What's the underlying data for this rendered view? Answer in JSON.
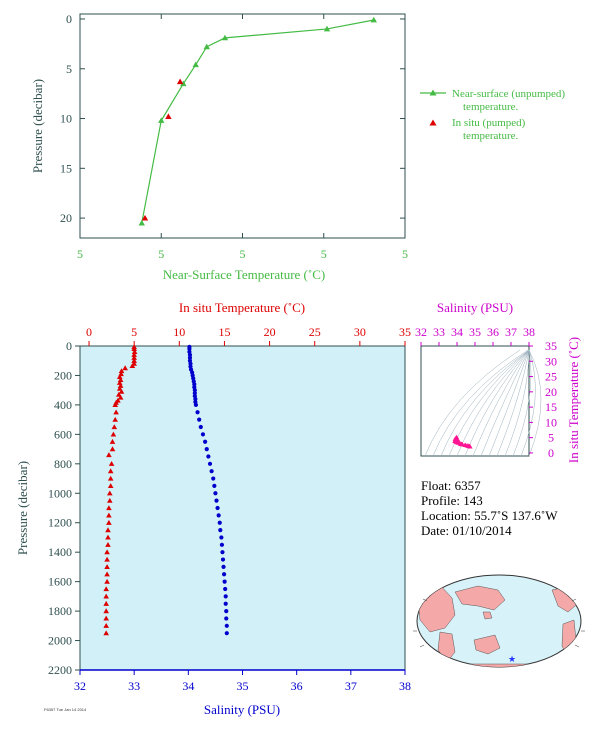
{
  "chart_data": [
    {
      "type": "line",
      "xlabel": "Near-Surface Temperature (˚C)",
      "ylabel": "Pressure (decibar)",
      "xticks": [
        "5",
        "5",
        "5",
        "5",
        "5"
      ],
      "yticks": [
        "0",
        "5",
        "10",
        "15",
        "20"
      ],
      "xlim": [
        1.5,
        6.5
      ],
      "ylim": [
        22,
        -0.5
      ],
      "series": [
        {
          "name": "Near-surface (unpumped) temperature.",
          "color": "#44bb44",
          "marker": "triangle",
          "points": [
            [
              6.02,
              0.1
            ],
            [
              5.3,
              1.0
            ],
            [
              3.73,
              1.9
            ],
            [
              3.45,
              2.8
            ],
            [
              3.28,
              4.6
            ],
            [
              3.09,
              6.5
            ],
            [
              2.75,
              10.2
            ],
            [
              2.45,
              20.5
            ]
          ]
        },
        {
          "name": "In situ (pumped) temperature.",
          "color": "#dd0000",
          "marker": "triangle",
          "points": [
            [
              3.04,
              6.3
            ],
            [
              2.86,
              9.8
            ],
            [
              2.5,
              20.0
            ]
          ]
        }
      ]
    },
    {
      "type": "scatter",
      "top_xlabel": "In situ Temperature (˚C)",
      "bottom_xlabel": "Salinity (PSU)",
      "ylabel": "Pressure (decibar)",
      "top_xticks": [
        "0",
        "5",
        "10",
        "15",
        "20",
        "25",
        "30",
        "35"
      ],
      "bottom_xticks": [
        "32",
        "33",
        "34",
        "35",
        "36",
        "37",
        "38"
      ],
      "yticks": [
        "0",
        "200",
        "400",
        "600",
        "800",
        "1000",
        "1200",
        "1400",
        "1600",
        "1800",
        "2000",
        "2200"
      ],
      "temperature_range": [
        -1,
        35
      ],
      "salinity_range": [
        32,
        38
      ],
      "pressure_range": [
        0,
        2200
      ],
      "series": [
        {
          "name": "temperature",
          "color": "#dd0000",
          "marker": "triangle",
          "points": [
            [
              5.0,
              6
            ],
            [
              5.0,
              20
            ],
            [
              5.05,
              40
            ],
            [
              5.0,
              60
            ],
            [
              5.0,
              80
            ],
            [
              5.0,
              100
            ],
            [
              5.0,
              120
            ],
            [
              4.8,
              135
            ],
            [
              4.0,
              150
            ],
            [
              3.6,
              170
            ],
            [
              3.55,
              190
            ],
            [
              3.4,
              210
            ],
            [
              3.5,
              230
            ],
            [
              3.4,
              250
            ],
            [
              3.5,
              270
            ],
            [
              3.4,
              290
            ],
            [
              3.6,
              310
            ],
            [
              3.3,
              330
            ],
            [
              3.5,
              350
            ],
            [
              3.2,
              370
            ],
            [
              3.0,
              385
            ],
            [
              2.9,
              400
            ],
            [
              3.0,
              450
            ],
            [
              2.9,
              500
            ],
            [
              2.8,
              550
            ],
            [
              2.7,
              600
            ],
            [
              2.6,
              650
            ],
            [
              2.6,
              700
            ],
            [
              2.2,
              740
            ],
            [
              2.5,
              800
            ],
            [
              2.4,
              850
            ],
            [
              2.4,
              900
            ],
            [
              2.4,
              950
            ],
            [
              2.3,
              1000
            ],
            [
              2.3,
              1050
            ],
            [
              2.2,
              1100
            ],
            [
              2.2,
              1150
            ],
            [
              2.2,
              1200
            ],
            [
              2.1,
              1250
            ],
            [
              2.1,
              1300
            ],
            [
              2.1,
              1350
            ],
            [
              2.0,
              1400
            ],
            [
              2.0,
              1450
            ],
            [
              2.0,
              1500
            ],
            [
              2.0,
              1550
            ],
            [
              2.0,
              1600
            ],
            [
              1.9,
              1650
            ],
            [
              1.9,
              1700
            ],
            [
              1.9,
              1750
            ],
            [
              1.9,
              1800
            ],
            [
              1.9,
              1850
            ],
            [
              1.9,
              1900
            ],
            [
              1.9,
              1950
            ]
          ]
        },
        {
          "name": "salinity",
          "color": "#0000cc",
          "marker": "dot",
          "points": [
            [
              34.02,
              6
            ],
            [
              34.02,
              20
            ],
            [
              34.02,
              40
            ],
            [
              34.03,
              60
            ],
            [
              34.03,
              80
            ],
            [
              34.03,
              100
            ],
            [
              34.04,
              120
            ],
            [
              34.04,
              140
            ],
            [
              34.05,
              160
            ],
            [
              34.07,
              180
            ],
            [
              34.08,
              200
            ],
            [
              34.09,
              220
            ],
            [
              34.1,
              240
            ],
            [
              34.11,
              260
            ],
            [
              34.11,
              280
            ],
            [
              34.12,
              300
            ],
            [
              34.12,
              320
            ],
            [
              34.12,
              340
            ],
            [
              34.13,
              360
            ],
            [
              34.13,
              380
            ],
            [
              34.14,
              400
            ],
            [
              34.17,
              450
            ],
            [
              34.2,
              500
            ],
            [
              34.23,
              550
            ],
            [
              34.27,
              600
            ],
            [
              34.31,
              650
            ],
            [
              34.34,
              700
            ],
            [
              34.37,
              750
            ],
            [
              34.4,
              800
            ],
            [
              34.43,
              850
            ],
            [
              34.46,
              900
            ],
            [
              34.48,
              950
            ],
            [
              34.5,
              1000
            ],
            [
              34.52,
              1050
            ],
            [
              34.54,
              1100
            ],
            [
              34.56,
              1150
            ],
            [
              34.58,
              1200
            ],
            [
              34.59,
              1250
            ],
            [
              34.61,
              1300
            ],
            [
              34.62,
              1350
            ],
            [
              34.63,
              1400
            ],
            [
              34.64,
              1450
            ],
            [
              34.65,
              1500
            ],
            [
              34.66,
              1550
            ],
            [
              34.67,
              1600
            ],
            [
              34.68,
              1650
            ],
            [
              34.69,
              1700
            ],
            [
              34.69,
              1750
            ],
            [
              34.7,
              1800
            ],
            [
              34.7,
              1850
            ],
            [
              34.71,
              1900
            ],
            [
              34.71,
              1950
            ]
          ]
        }
      ]
    },
    {
      "type": "scatter",
      "top_xlabel": "Salinity (PSU)",
      "right_ylabel": "In situ Temperature (˚C)",
      "xticks": [
        "32",
        "33",
        "34",
        "35",
        "36",
        "37",
        "38"
      ],
      "yticks": [
        "0",
        "5",
        "10",
        "15",
        "20",
        "25",
        "30",
        "35"
      ],
      "xlim": [
        32,
        38
      ],
      "ylim": [
        -1,
        35
      ],
      "color": "#ff1493",
      "points": [
        [
          33.98,
          5.1
        ],
        [
          33.96,
          4.8
        ],
        [
          34.0,
          4.5
        ],
        [
          33.92,
          4.2
        ],
        [
          33.88,
          3.9
        ],
        [
          33.95,
          3.6
        ],
        [
          34.05,
          3.3
        ],
        [
          34.18,
          3.0
        ],
        [
          34.3,
          2.8
        ],
        [
          34.45,
          2.6
        ],
        [
          34.56,
          2.4
        ],
        [
          34.63,
          2.3
        ],
        [
          34.7,
          2.2
        ],
        [
          34.72,
          2.1
        ],
        [
          34.05,
          4.0
        ],
        [
          34.12,
          3.5
        ],
        [
          33.9,
          4.6
        ],
        [
          34.25,
          2.9
        ]
      ]
    }
  ],
  "info": {
    "float": "Float:  6357",
    "profile": "Profile:  143",
    "location": "Location:  55.7˚S  137.6˚W",
    "date": "Date:  01/10/2014"
  },
  "stamp": "F6357 Tue Jan 14 2014",
  "colors": {
    "axis_dark": "#2f4f4f",
    "green": "#44bb44",
    "red": "#dd0000",
    "blue": "#0000cc",
    "magenta": "#cc00cc",
    "profile_bg": "#d2f0f8",
    "map_land": "#f4a9a8",
    "map_ocean": "#d8f2fa",
    "float_marker": "#2233ff"
  },
  "map": {
    "marker_icon": "star-icon"
  }
}
